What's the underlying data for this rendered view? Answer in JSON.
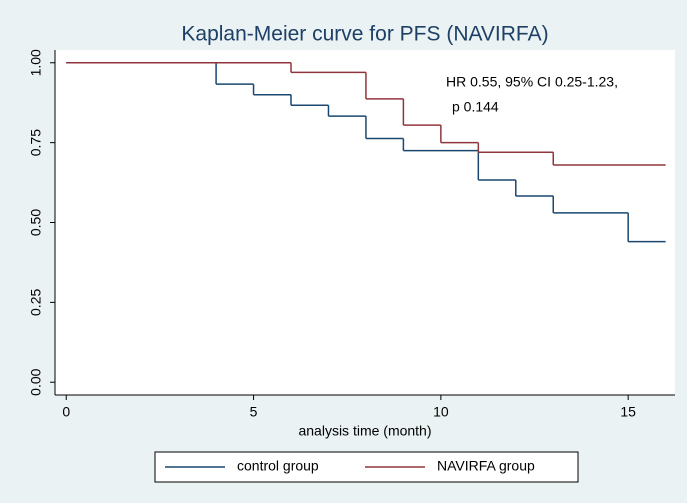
{
  "chart_data": {
    "type": "step",
    "title": "Kaplan-Meier curve for PFS (NAVIRFA)",
    "x_label": "analysis time (month)",
    "annotation": [
      "HR 0.55, 95% CI 0.25-1.23,",
      "p 0.144"
    ],
    "xlim": [
      -0.3,
      16.25
    ],
    "ylim": [
      -0.04,
      1.04
    ],
    "xticks": [
      0,
      5,
      10,
      15
    ],
    "yticks": [
      {
        "value": 0,
        "label": "0.00"
      },
      {
        "value": 0.25,
        "label": "0.25"
      },
      {
        "value": 0.5,
        "label": "0.50"
      },
      {
        "value": 0.75,
        "label": "0.75"
      },
      {
        "value": 1,
        "label": "1.00"
      }
    ],
    "grid": false,
    "series": [
      {
        "name": "control group",
        "color": "#1a476f",
        "x": [
          0,
          4,
          5,
          6,
          7,
          8,
          9,
          11,
          12,
          13,
          15,
          16
        ],
        "values": [
          1.0,
          0.933,
          0.9,
          0.867,
          0.833,
          0.763,
          0.725,
          0.633,
          0.583,
          0.53,
          0.44,
          0.44
        ]
      },
      {
        "name": "NAVIRFA group",
        "color": "#90353b",
        "x": [
          0,
          6,
          8,
          9,
          10,
          11,
          13,
          16
        ],
        "values": [
          1.0,
          0.97,
          0.887,
          0.805,
          0.75,
          0.72,
          0.68,
          0.68
        ]
      }
    ]
  }
}
